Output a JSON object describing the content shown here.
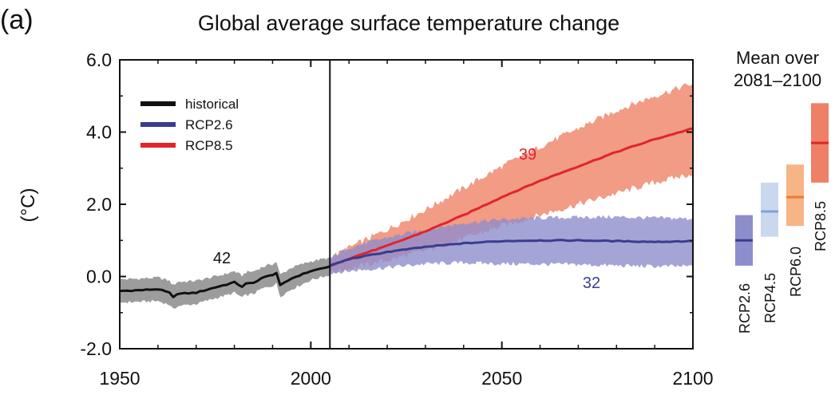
{
  "chart_data": {
    "type": "line",
    "panel_label": "(a)",
    "title": "Global average surface temperature change",
    "xlabel": "",
    "ylabel": "(°C)",
    "xlim": [
      1950,
      2100
    ],
    "ylim": [
      -2.0,
      6.0
    ],
    "x_ticks": [
      "1950",
      "2000",
      "2050",
      "2100"
    ],
    "y_ticks": [
      "6.0",
      "4.0",
      "2.0",
      "0.0",
      "-2.0"
    ],
    "reference_line_x": 2005,
    "legend": [
      "historical",
      "RCP2.6",
      "RCP8.5"
    ],
    "colors": {
      "historical_line": "#111111",
      "historical_band": "#9c9c9c",
      "rcp26_line": "#3a3c8f",
      "rcp26_band": "#8e8dcc",
      "rcp85_line": "#e1242a",
      "rcp85_band": "#f08a70"
    },
    "series": [
      {
        "name": "historical",
        "model_count": "42",
        "x": [
          1950,
          1955,
          1960,
          1963,
          1964,
          1965,
          1970,
          1975,
          1978,
          1980,
          1982,
          1983,
          1985,
          1987,
          1990,
          1991,
          1992,
          1995,
          2000,
          2005
        ],
        "mean": [
          -0.4,
          -0.38,
          -0.35,
          -0.45,
          -0.58,
          -0.48,
          -0.45,
          -0.3,
          -0.22,
          -0.16,
          -0.28,
          -0.2,
          -0.18,
          -0.05,
          0.05,
          0.1,
          -0.25,
          -0.05,
          0.15,
          0.28
        ],
        "lower": [
          -0.72,
          -0.7,
          -0.68,
          -0.78,
          -0.92,
          -0.82,
          -0.76,
          -0.6,
          -0.52,
          -0.45,
          -0.58,
          -0.52,
          -0.48,
          -0.35,
          -0.25,
          -0.2,
          -0.55,
          -0.35,
          -0.1,
          0.05
        ],
        "upper": [
          -0.08,
          -0.06,
          -0.03,
          -0.12,
          -0.25,
          -0.15,
          -0.12,
          0.0,
          0.08,
          0.15,
          0.02,
          0.12,
          0.14,
          0.25,
          0.35,
          0.4,
          0.05,
          0.25,
          0.42,
          0.52
        ]
      },
      {
        "name": "RCP2.6",
        "model_count": "32",
        "x": [
          2005,
          2010,
          2020,
          2030,
          2040,
          2050,
          2060,
          2070,
          2080,
          2090,
          2100
        ],
        "mean": [
          0.3,
          0.48,
          0.68,
          0.82,
          0.92,
          0.98,
          1.0,
          1.0,
          0.98,
          0.96,
          0.98
        ],
        "lower": [
          0.1,
          0.15,
          0.25,
          0.35,
          0.38,
          0.35,
          0.34,
          0.33,
          0.3,
          0.28,
          0.28
        ],
        "upper": [
          0.5,
          0.8,
          1.08,
          1.3,
          1.48,
          1.58,
          1.62,
          1.64,
          1.65,
          1.62,
          1.6
        ]
      },
      {
        "name": "RCP8.5",
        "model_count": "39",
        "x": [
          2005,
          2010,
          2020,
          2030,
          2040,
          2050,
          2060,
          2070,
          2080,
          2090,
          2100
        ],
        "mean": [
          0.3,
          0.5,
          0.85,
          1.25,
          1.7,
          2.2,
          2.65,
          3.05,
          3.45,
          3.8,
          4.1
        ],
        "lower": [
          0.1,
          0.22,
          0.45,
          0.72,
          1.05,
          1.4,
          1.7,
          2.0,
          2.3,
          2.6,
          2.85
        ],
        "upper": [
          0.52,
          0.8,
          1.3,
          1.85,
          2.45,
          3.05,
          3.6,
          4.1,
          4.6,
          5.0,
          5.35
        ]
      }
    ],
    "side_panel": {
      "title_line1": "Mean over",
      "title_line2": "2081–2100",
      "bars": [
        {
          "name": "RCP2.6",
          "low": 0.3,
          "mean": 1.0,
          "high": 1.7,
          "fill": "#8e8dcc",
          "line": "#3a3c8f"
        },
        {
          "name": "RCP4.5",
          "low": 1.1,
          "mean": 1.8,
          "high": 2.6,
          "fill": "#c9d8ee",
          "line": "#7fa3d6"
        },
        {
          "name": "RCP6.0",
          "low": 1.4,
          "mean": 2.2,
          "high": 3.1,
          "fill": "#f6b487",
          "line": "#ef7b2c"
        },
        {
          "name": "RCP8.5",
          "low": 2.6,
          "mean": 3.7,
          "high": 4.8,
          "fill": "#ef8068",
          "line": "#df2626"
        }
      ]
    }
  }
}
